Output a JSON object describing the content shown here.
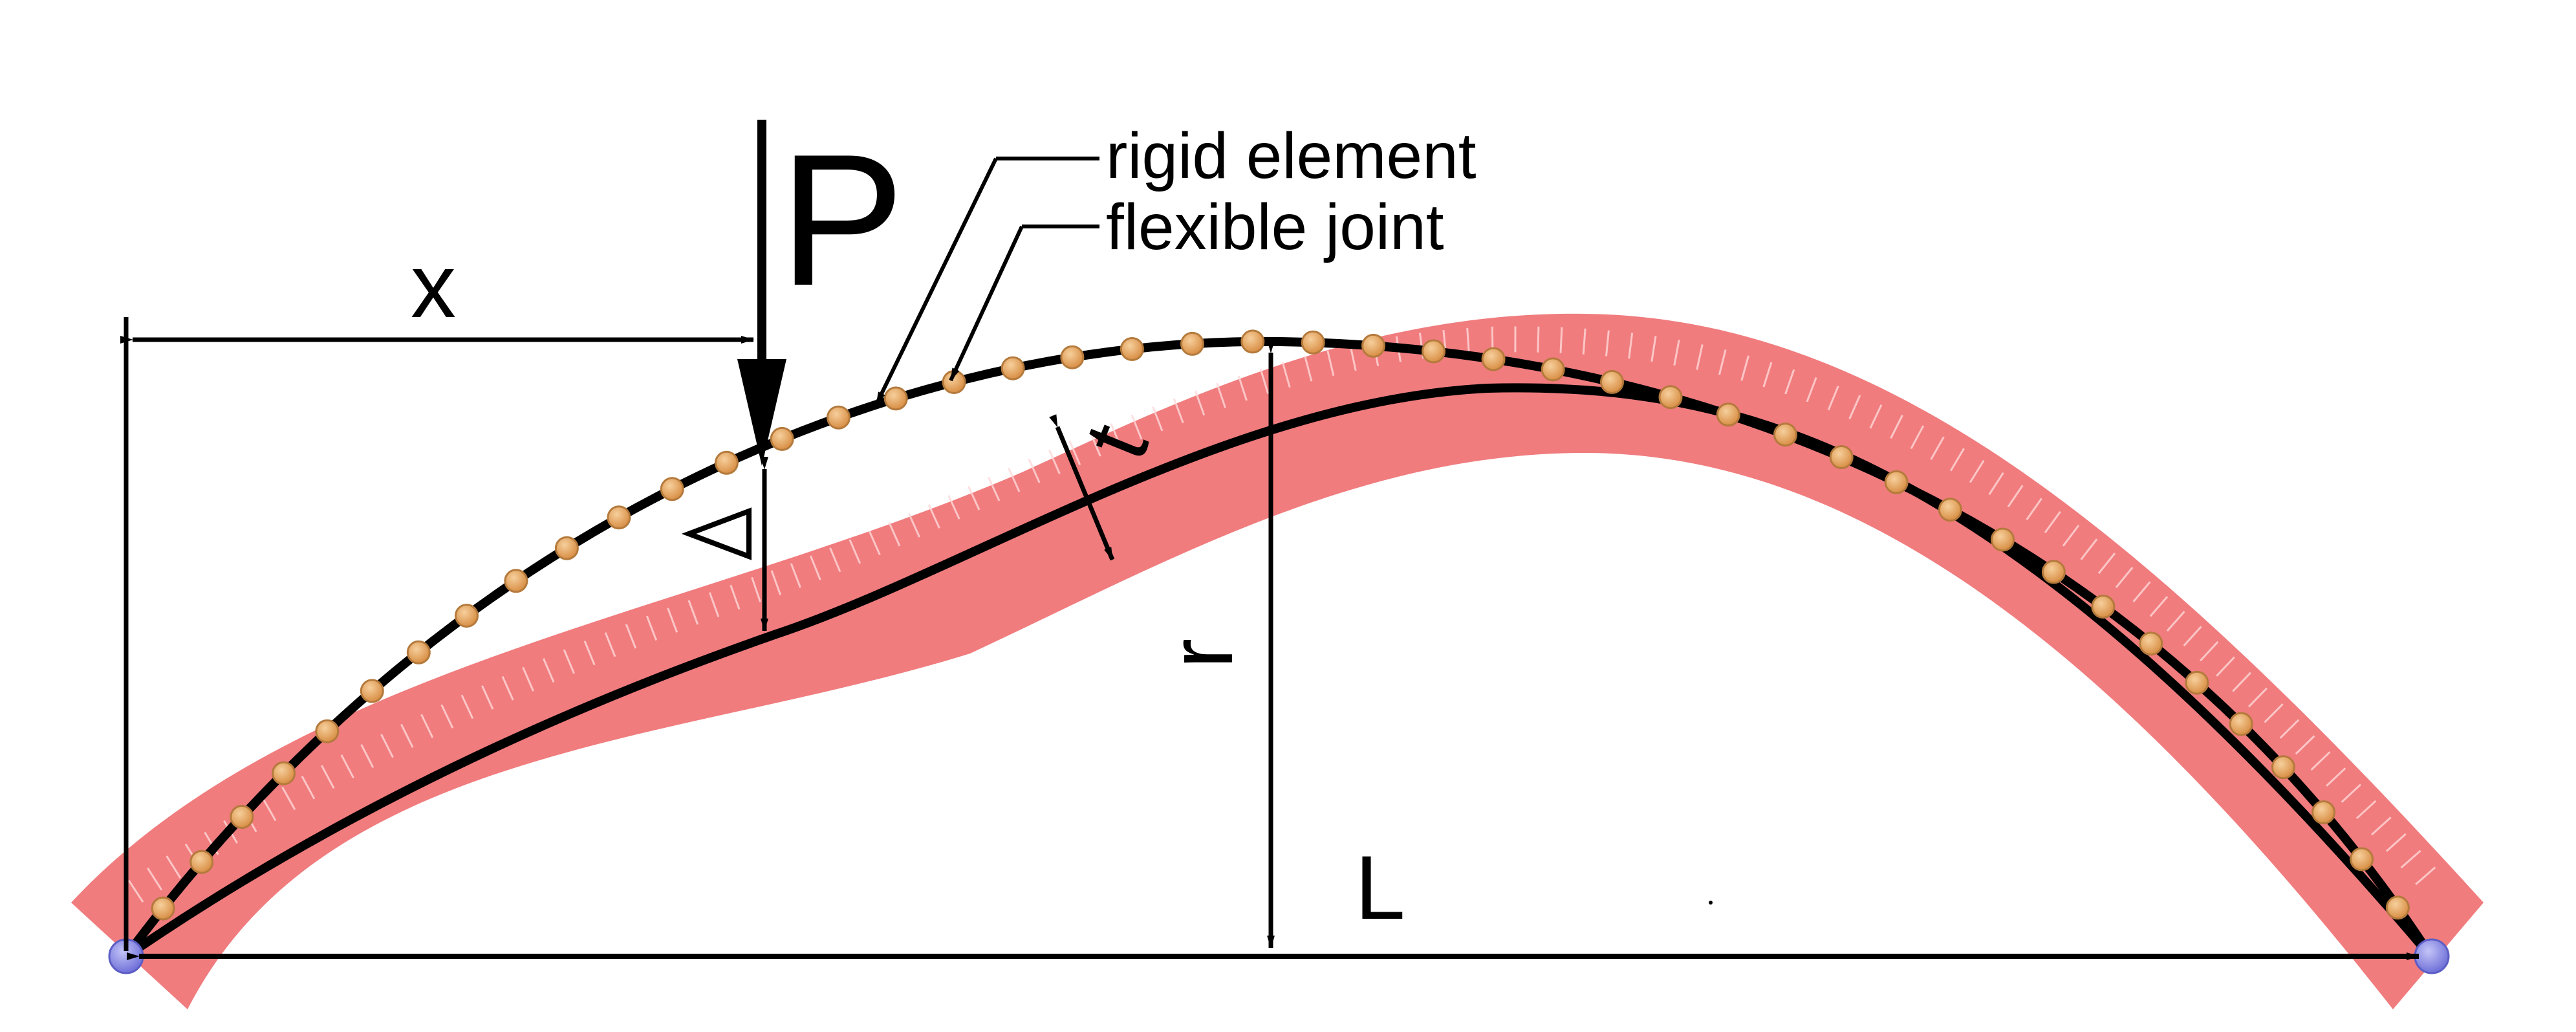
{
  "labels": {
    "load": "P",
    "position": "x",
    "rise": "r",
    "span": "L",
    "thickness": "t",
    "deflection": "Δ",
    "rigid_element": "rigid element",
    "flexible_joint": "flexible joint"
  },
  "colors": {
    "arch_band": "#f07c7e",
    "joint_fill": "#e8a35f",
    "joint_stroke": "#b47a3c",
    "support": "#8e8fe6",
    "line": "#000000"
  },
  "joint_count": 45
}
